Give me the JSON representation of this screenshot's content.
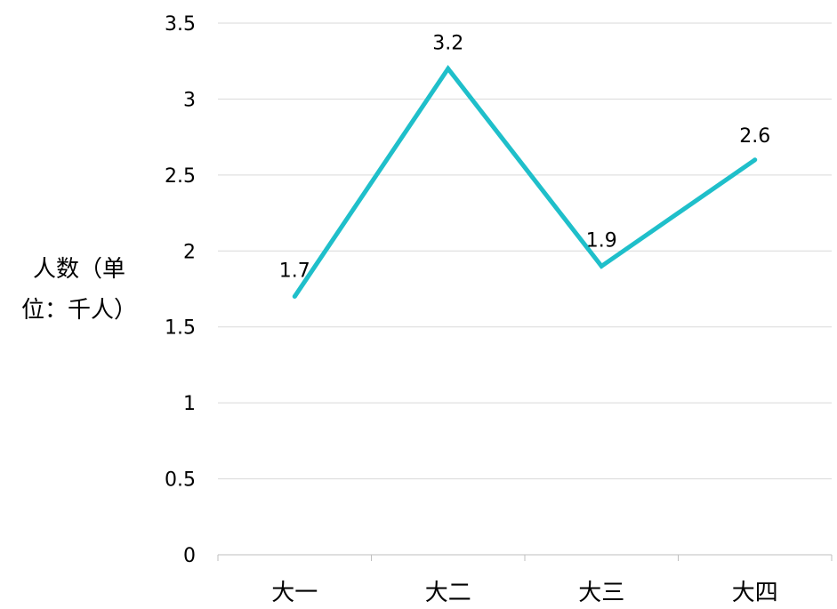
{
  "chart_data": {
    "type": "line",
    "title": "",
    "xlabel": "",
    "ylabel": [
      "人数（单",
      "位：千人）"
    ],
    "categories": [
      "大一",
      "大二",
      "大三",
      "大四"
    ],
    "series": [
      {
        "values": [
          1.7,
          3.2,
          1.9,
          2.6
        ]
      }
    ],
    "data_labels": [
      "1.7",
      "3.2",
      "1.9",
      "2.6"
    ],
    "yticks": [
      "0",
      "0.5",
      "1",
      "1.5",
      "2",
      "2.5",
      "3",
      "3.5"
    ],
    "ytick_values": [
      0,
      0.5,
      1,
      1.5,
      2,
      2.5,
      3,
      3.5
    ],
    "ylim": [
      0,
      3.5
    ],
    "grid": true,
    "legend": "none",
    "colors": {
      "line": "#1fbfca",
      "grid": "#d9d9d9",
      "axis": "#bfbfbf",
      "text": "#000000"
    }
  }
}
